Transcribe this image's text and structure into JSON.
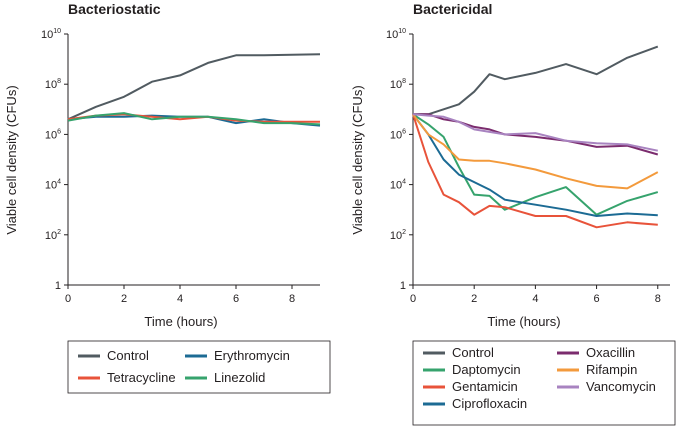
{
  "chart_data": [
    {
      "type": "line",
      "title": "Bacteriostatic",
      "xlabel": "Time (hours)",
      "ylabel": "Viable cell density (CFUs)",
      "xlim": [
        0,
        9
      ],
      "ylim_log10": [
        0,
        10
      ],
      "y_scale": "log",
      "x_ticks": [
        "0",
        "2",
        "4",
        "6",
        "8"
      ],
      "y_ticks": [
        {
          "base": "10",
          "exp": "10"
        },
        {
          "base": "10",
          "exp": "8"
        },
        {
          "base": "10",
          "exp": "6"
        },
        {
          "base": "10",
          "exp": "4"
        },
        {
          "base": "10",
          "exp": "2"
        },
        {
          "base": "1",
          "exp": ""
        }
      ],
      "legend_position": "bottom",
      "series": [
        {
          "name": "Control",
          "color": "#515b61",
          "x": [
            0,
            1,
            2,
            3,
            4,
            5,
            6,
            7,
            8,
            9
          ],
          "log10_values": [
            6.6,
            7.1,
            7.5,
            8.1,
            8.35,
            8.85,
            9.15,
            9.15,
            9.17,
            9.19
          ]
        },
        {
          "name": "Erythromycin",
          "color": "#1c6b94",
          "x": [
            0,
            1,
            2,
            3,
            4,
            5,
            6,
            7,
            8,
            9
          ],
          "log10_values": [
            6.6,
            6.7,
            6.7,
            6.75,
            6.7,
            6.7,
            6.45,
            6.6,
            6.45,
            6.35
          ]
        },
        {
          "name": "Tetracycline",
          "color": "#e8533a",
          "x": [
            0,
            1,
            2,
            3,
            4,
            5,
            6,
            7,
            8,
            9
          ],
          "log10_values": [
            6.6,
            6.75,
            6.8,
            6.7,
            6.6,
            6.7,
            6.55,
            6.5,
            6.5,
            6.5
          ]
        },
        {
          "name": "Linezolid",
          "color": "#36a36d",
          "x": [
            0,
            1,
            2,
            3,
            4,
            5,
            6,
            7,
            8,
            9
          ],
          "log10_values": [
            6.55,
            6.75,
            6.85,
            6.6,
            6.7,
            6.7,
            6.6,
            6.45,
            6.45,
            6.4
          ]
        }
      ]
    },
    {
      "type": "line",
      "title": "Bactericidal",
      "xlabel": "Time (hours)",
      "ylabel": "Viable cell density (CFUs)",
      "xlim": [
        0,
        8.4
      ],
      "ylim_log10": [
        0,
        10
      ],
      "y_scale": "log",
      "x_ticks": [
        "0",
        "2",
        "4",
        "6",
        "8"
      ],
      "y_ticks": [
        {
          "base": "10",
          "exp": "10"
        },
        {
          "base": "10",
          "exp": "8"
        },
        {
          "base": "10",
          "exp": "6"
        },
        {
          "base": "10",
          "exp": "4"
        },
        {
          "base": "10",
          "exp": "2"
        },
        {
          "base": "1",
          "exp": ""
        }
      ],
      "legend_position": "bottom",
      "series": [
        {
          "name": "Control",
          "color": "#515b61",
          "x": [
            0,
            0.5,
            1,
            1.5,
            2,
            2.5,
            3,
            4,
            5,
            6,
            7,
            8
          ],
          "log10_values": [
            6.8,
            6.8,
            7.0,
            7.2,
            7.7,
            8.4,
            8.2,
            8.45,
            8.8,
            8.4,
            9.05,
            9.5
          ]
        },
        {
          "name": "Daptomycin",
          "color": "#36a36d",
          "x": [
            0,
            0.5,
            1,
            1.5,
            2,
            2.5,
            3,
            4,
            5,
            6,
            7,
            8
          ],
          "log10_values": [
            6.8,
            6.4,
            5.9,
            4.7,
            3.6,
            3.55,
            3.0,
            3.5,
            3.9,
            2.8,
            3.35,
            3.7
          ]
        },
        {
          "name": "Gentamicin",
          "color": "#e8533a",
          "x": [
            0,
            0.5,
            1,
            1.5,
            2,
            2.5,
            3,
            4,
            5,
            6,
            7,
            8
          ],
          "log10_values": [
            6.8,
            4.9,
            3.6,
            3.3,
            2.8,
            3.15,
            3.1,
            2.75,
            2.75,
            2.3,
            2.5,
            2.4
          ]
        },
        {
          "name": "Ciprofloxacin",
          "color": "#1c6b94",
          "x": [
            0,
            0.5,
            1,
            1.5,
            2,
            2.5,
            3,
            4,
            5,
            6,
            7,
            8
          ],
          "log10_values": [
            6.8,
            6.0,
            5.0,
            4.4,
            4.1,
            3.8,
            3.4,
            3.2,
            3.0,
            2.75,
            2.85,
            2.78
          ]
        },
        {
          "name": "Oxacillin",
          "color": "#7b2c6e",
          "x": [
            0,
            0.5,
            1,
            1.5,
            2,
            2.5,
            3,
            4,
            5,
            6,
            7,
            8
          ],
          "log10_values": [
            6.8,
            6.8,
            6.6,
            6.5,
            6.3,
            6.2,
            6.0,
            5.9,
            5.75,
            5.5,
            5.55,
            5.2
          ]
        },
        {
          "name": "Rifampin",
          "color": "#f39a3c",
          "x": [
            0,
            0.5,
            1,
            1.5,
            2,
            2.5,
            3,
            4,
            5,
            6,
            7,
            8
          ],
          "log10_values": [
            6.8,
            6.0,
            5.6,
            5.0,
            4.95,
            4.95,
            4.85,
            4.6,
            4.25,
            3.95,
            3.85,
            4.5
          ]
        },
        {
          "name": "Vancomycin",
          "color": "#a883c0",
          "x": [
            0,
            0.5,
            1,
            1.5,
            2,
            2.5,
            3,
            4,
            5,
            6,
            7,
            8
          ],
          "log10_values": [
            6.8,
            6.75,
            6.7,
            6.5,
            6.2,
            6.1,
            6.0,
            6.05,
            5.75,
            5.65,
            5.6,
            5.35
          ]
        }
      ]
    }
  ]
}
